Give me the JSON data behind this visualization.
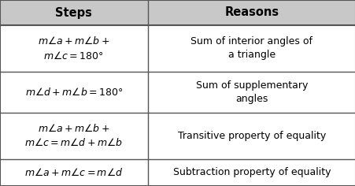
{
  "header": [
    "Steps",
    "Reasons"
  ],
  "rows": [
    {
      "step": "$m\\angle a + m\\angle b +$\n$m\\angle c = 180°$",
      "reason": "Sum of interior angles of\na triangle"
    },
    {
      "step": "$m\\angle d + m\\angle b = 180°$",
      "reason": "Sum of supplementary\nangles"
    },
    {
      "step": "$m\\angle a + m\\angle b +$\n$m\\angle c = m\\angle d + m\\angle b$",
      "reason": "Transitive property of equality"
    },
    {
      "step": "$m\\angle a + m\\angle c = m\\angle d$",
      "reason": "Subtraction property of equality"
    }
  ],
  "header_bg": "#c8c8c8",
  "row_bg": "#ffffff",
  "border_color": "#555555",
  "header_fontsize": 10.5,
  "cell_fontsize": 9.0,
  "col_split": 0.415
}
